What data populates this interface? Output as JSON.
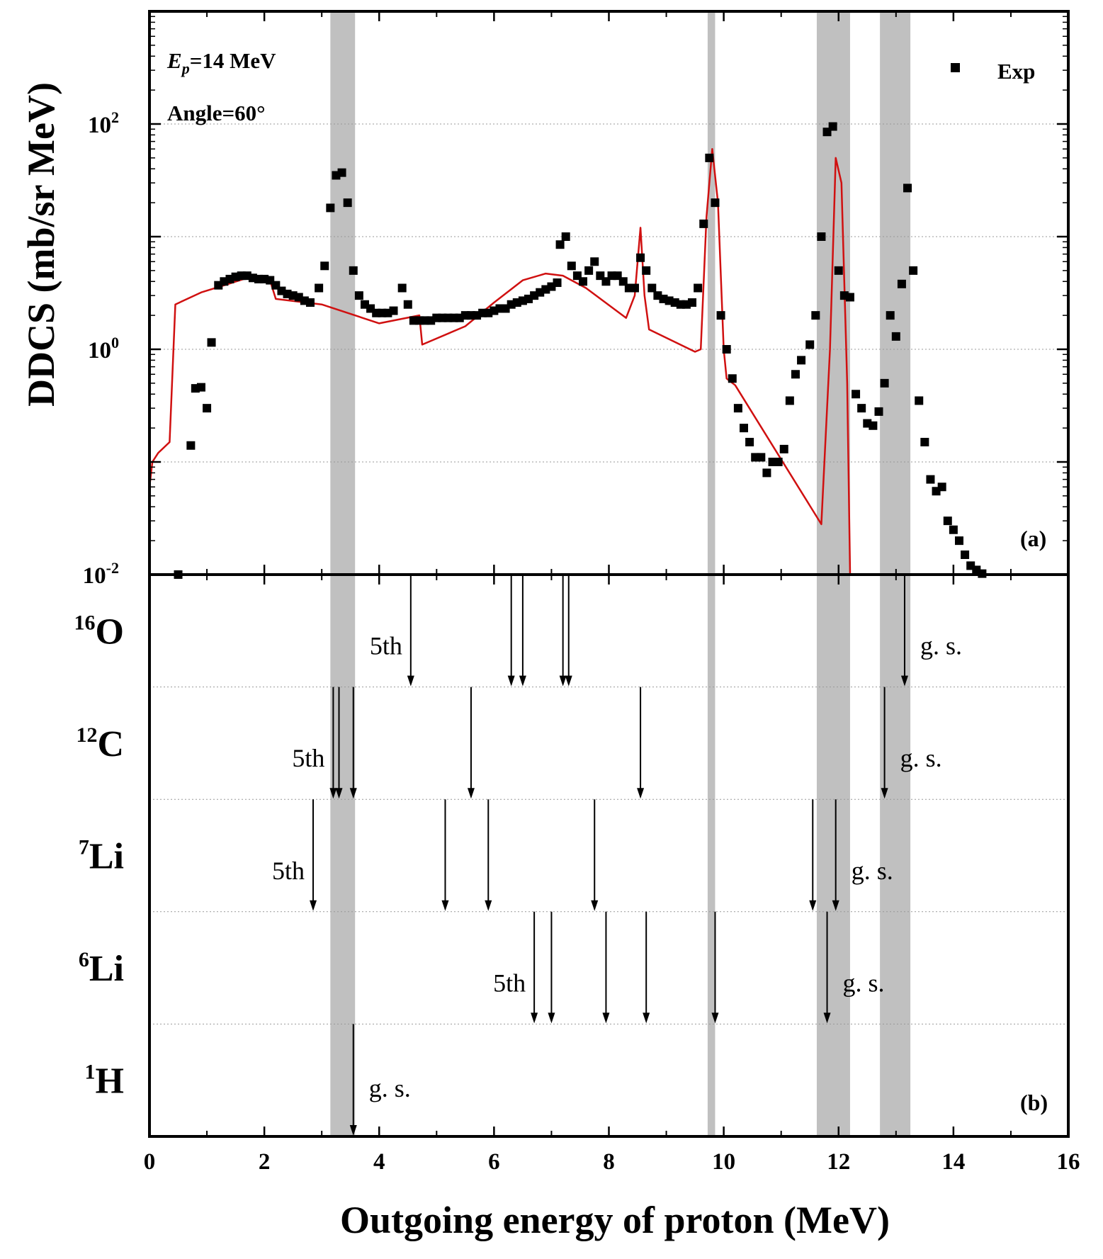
{
  "chart_data": [
    {
      "type": "scatter",
      "panel_label": "(a)",
      "ylabel": "DDCS (mb/sr MeV)",
      "xlabel": "Outgoing energy of proton (MeV)",
      "xlim": [
        0,
        16
      ],
      "ylim_log10": [
        -2,
        3
      ],
      "yscale": "log",
      "x_ticks": [
        "0",
        "2",
        "4",
        "6",
        "8",
        "10",
        "12",
        "14",
        "16"
      ],
      "y_ticks": [
        {
          "base": "10",
          "exp": "2",
          "value": 100
        },
        {
          "base": "10",
          "exp": "0",
          "value": 1
        },
        {
          "base": "10",
          "exp": "-2",
          "value": 0.01
        }
      ],
      "grid": "horizontal dotted",
      "annotations": {
        "energy": {
          "sym": "E",
          "sub": "p",
          "rest": "=14 MeV"
        },
        "angle": "Angle=60°"
      },
      "legend": {
        "position": "top-right",
        "entries": [
          {
            "name": "Exp",
            "marker": "square",
            "color": "#000000"
          }
        ]
      },
      "shaded_bands": [
        [
          3.15,
          3.58
        ],
        [
          9.72,
          9.85
        ],
        [
          11.62,
          12.2
        ],
        [
          12.72,
          13.25
        ]
      ],
      "exp": [
        [
          0.5,
          0.01
        ],
        [
          0.72,
          0.14
        ],
        [
          0.8,
          0.45
        ],
        [
          0.9,
          0.46
        ],
        [
          1.0,
          0.3
        ],
        [
          1.08,
          1.15
        ],
        [
          1.2,
          3.7
        ],
        [
          1.3,
          4.0
        ],
        [
          1.4,
          4.2
        ],
        [
          1.5,
          4.4
        ],
        [
          1.6,
          4.5
        ],
        [
          1.7,
          4.5
        ],
        [
          1.8,
          4.3
        ],
        [
          1.9,
          4.2
        ],
        [
          2.0,
          4.2
        ],
        [
          2.1,
          4.1
        ],
        [
          2.2,
          3.7
        ],
        [
          2.3,
          3.3
        ],
        [
          2.4,
          3.1
        ],
        [
          2.5,
          3.0
        ],
        [
          2.6,
          2.9
        ],
        [
          2.7,
          2.7
        ],
        [
          2.8,
          2.6
        ],
        [
          2.95,
          3.5
        ],
        [
          3.05,
          5.5
        ],
        [
          3.15,
          18.0
        ],
        [
          3.25,
          35.0
        ],
        [
          3.35,
          37.0
        ],
        [
          3.45,
          20.0
        ],
        [
          3.55,
          5.0
        ],
        [
          3.65,
          3.0
        ],
        [
          3.75,
          2.5
        ],
        [
          3.85,
          2.3
        ],
        [
          3.95,
          2.1
        ],
        [
          4.05,
          2.1
        ],
        [
          4.15,
          2.1
        ],
        [
          4.25,
          2.2
        ],
        [
          4.4,
          3.5
        ],
        [
          4.5,
          2.5
        ],
        [
          4.6,
          1.8
        ],
        [
          4.7,
          1.8
        ],
        [
          4.8,
          1.8
        ],
        [
          4.9,
          1.8
        ],
        [
          5.0,
          1.9
        ],
        [
          5.1,
          1.9
        ],
        [
          5.2,
          1.9
        ],
        [
          5.3,
          1.9
        ],
        [
          5.4,
          1.9
        ],
        [
          5.5,
          2.0
        ],
        [
          5.6,
          2.0
        ],
        [
          5.7,
          2.0
        ],
        [
          5.8,
          2.1
        ],
        [
          5.9,
          2.1
        ],
        [
          6.0,
          2.2
        ],
        [
          6.1,
          2.3
        ],
        [
          6.2,
          2.3
        ],
        [
          6.3,
          2.5
        ],
        [
          6.4,
          2.6
        ],
        [
          6.5,
          2.7
        ],
        [
          6.6,
          2.8
        ],
        [
          6.7,
          3.0
        ],
        [
          6.8,
          3.2
        ],
        [
          6.9,
          3.4
        ],
        [
          7.0,
          3.6
        ],
        [
          7.1,
          3.9
        ],
        [
          7.15,
          8.5
        ],
        [
          7.25,
          10.0
        ],
        [
          7.35,
          5.5
        ],
        [
          7.45,
          4.5
        ],
        [
          7.55,
          4.0
        ],
        [
          7.65,
          5.0
        ],
        [
          7.75,
          6.0
        ],
        [
          7.85,
          4.5
        ],
        [
          7.95,
          4.0
        ],
        [
          8.05,
          4.5
        ],
        [
          8.15,
          4.5
        ],
        [
          8.25,
          4.0
        ],
        [
          8.35,
          3.5
        ],
        [
          8.45,
          3.5
        ],
        [
          8.55,
          6.5
        ],
        [
          8.65,
          5.0
        ],
        [
          8.75,
          3.5
        ],
        [
          8.85,
          3.0
        ],
        [
          8.95,
          2.8
        ],
        [
          9.05,
          2.7
        ],
        [
          9.15,
          2.6
        ],
        [
          9.25,
          2.5
        ],
        [
          9.35,
          2.5
        ],
        [
          9.45,
          2.6
        ],
        [
          9.55,
          3.5
        ],
        [
          9.65,
          13.0
        ],
        [
          9.75,
          50.0
        ],
        [
          9.85,
          20.0
        ],
        [
          9.95,
          2.0
        ],
        [
          10.05,
          1.0
        ],
        [
          10.15,
          0.55
        ],
        [
          10.25,
          0.3
        ],
        [
          10.35,
          0.2
        ],
        [
          10.45,
          0.15
        ],
        [
          10.55,
          0.11
        ],
        [
          10.65,
          0.11
        ],
        [
          10.75,
          0.08
        ],
        [
          10.85,
          0.1
        ],
        [
          10.95,
          0.1
        ],
        [
          11.05,
          0.13
        ],
        [
          11.15,
          0.35
        ],
        [
          11.25,
          0.6
        ],
        [
          11.35,
          0.8
        ],
        [
          11.5,
          1.1
        ],
        [
          11.6,
          2.0
        ],
        [
          11.7,
          10.0
        ],
        [
          11.8,
          85.0
        ],
        [
          11.9,
          95.0
        ],
        [
          12.0,
          5.0
        ],
        [
          12.1,
          3.0
        ],
        [
          12.2,
          2.9
        ],
        [
          12.3,
          0.4
        ],
        [
          12.4,
          0.3
        ],
        [
          12.5,
          0.22
        ],
        [
          12.6,
          0.21
        ],
        [
          12.7,
          0.28
        ],
        [
          12.8,
          0.5
        ],
        [
          12.9,
          2.0
        ],
        [
          13.0,
          1.3
        ],
        [
          13.1,
          3.8
        ],
        [
          13.2,
          27.0
        ],
        [
          13.3,
          5.0
        ],
        [
          13.4,
          0.35
        ],
        [
          13.5,
          0.15
        ],
        [
          13.6,
          0.07
        ],
        [
          13.7,
          0.055
        ],
        [
          13.8,
          0.06
        ],
        [
          13.9,
          0.03
        ],
        [
          14.0,
          0.025
        ],
        [
          14.1,
          0.02
        ],
        [
          14.2,
          0.015
        ],
        [
          14.3,
          0.012
        ],
        [
          14.4,
          0.011
        ],
        [
          14.5,
          0.0102
        ]
      ],
      "calc": [
        [
          0.0,
          0.06
        ],
        [
          0.05,
          0.1
        ],
        [
          0.15,
          0.12
        ],
        [
          0.35,
          0.15
        ],
        [
          0.45,
          2.5
        ],
        [
          0.9,
          3.2
        ],
        [
          1.3,
          3.7
        ],
        [
          1.7,
          4.3
        ],
        [
          2.1,
          4.1
        ],
        [
          2.2,
          2.8
        ],
        [
          3.0,
          2.5
        ],
        [
          4.0,
          1.7
        ],
        [
          4.7,
          2.0
        ],
        [
          4.75,
          1.1
        ],
        [
          5.5,
          1.6
        ],
        [
          6.0,
          2.6
        ],
        [
          6.5,
          4.1
        ],
        [
          6.9,
          4.7
        ],
        [
          7.2,
          4.5
        ],
        [
          7.6,
          3.5
        ],
        [
          8.3,
          1.9
        ],
        [
          8.45,
          3.0
        ],
        [
          8.55,
          12.0
        ],
        [
          8.62,
          3.0
        ],
        [
          8.7,
          1.5
        ],
        [
          9.5,
          0.95
        ],
        [
          9.6,
          1.0
        ],
        [
          9.7,
          15.0
        ],
        [
          9.8,
          60.0
        ],
        [
          9.9,
          20.0
        ],
        [
          10.0,
          1.0
        ],
        [
          10.05,
          0.55
        ],
        [
          10.2,
          0.48
        ],
        [
          11.7,
          0.028
        ],
        [
          11.85,
          1.0
        ],
        [
          11.95,
          50.0
        ],
        [
          12.05,
          30.0
        ],
        [
          12.15,
          0.5
        ],
        [
          12.2,
          0.01
        ]
      ]
    },
    {
      "type": "level-diagram",
      "panel_label": "(b)",
      "rows": [
        {
          "A": "16",
          "el": "O",
          "first_label": "5th",
          "last_label": "g. s.",
          "arrows": [
            4.55,
            6.3,
            6.5,
            7.2,
            7.3,
            13.15
          ]
        },
        {
          "A": "12",
          "el": "C",
          "first_label": "5th",
          "last_label": "g. s.",
          "arrows": [
            3.2,
            3.3,
            3.55,
            5.6,
            8.55,
            12.8
          ]
        },
        {
          "A": "7",
          "el": "Li",
          "first_label": "5th",
          "last_label": "g. s.",
          "arrows": [
            2.85,
            5.15,
            5.9,
            7.75,
            11.55,
            11.95
          ]
        },
        {
          "A": "6",
          "el": "Li",
          "first_label": "5th",
          "last_label": "g. s.",
          "arrows": [
            6.7,
            7.0,
            7.95,
            8.65,
            9.85,
            11.8
          ]
        },
        {
          "A": "1",
          "el": "H",
          "first_label": "",
          "last_label": "g. s.",
          "arrows": [
            3.55
          ]
        }
      ]
    }
  ]
}
